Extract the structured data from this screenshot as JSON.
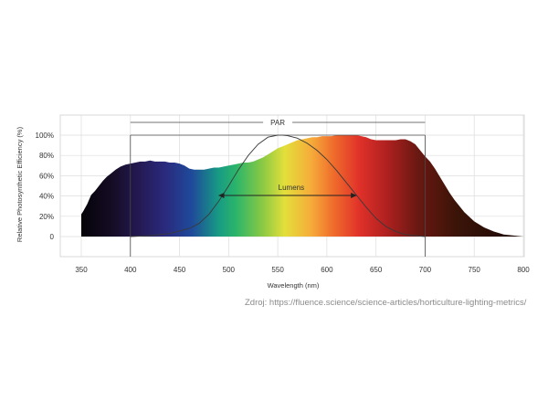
{
  "chart_data": {
    "type": "area",
    "xlabel": "Wavelength (nm)",
    "ylabel": "Relative Photosynthetic Efficiency (%)",
    "xlim": [
      350,
      800
    ],
    "ylim": [
      0,
      100
    ],
    "x_ticks": [
      "350",
      "400",
      "450",
      "500",
      "550",
      "600",
      "650",
      "700",
      "750",
      "800"
    ],
    "y_ticks": [
      "0",
      "20%",
      "40%",
      "60%",
      "80%",
      "100%"
    ],
    "grid": true,
    "series": [
      {
        "x": [
          350,
          352,
          356,
          360,
          364,
          368,
          372,
          376,
          380,
          385,
          390,
          395,
          400,
          405,
          410,
          415,
          420,
          425,
          430,
          435,
          440,
          445,
          450,
          455,
          460,
          465,
          470,
          475,
          480,
          485,
          490,
          495,
          500,
          505,
          510,
          515,
          520,
          525,
          530,
          535,
          540,
          545,
          550,
          555,
          560,
          565,
          570,
          575,
          580,
          585,
          590,
          595,
          600,
          605,
          610,
          615,
          620,
          625,
          630,
          635,
          640,
          645,
          650,
          655,
          660,
          665,
          670,
          675,
          680,
          685,
          690,
          695,
          700,
          705,
          710,
          715,
          720,
          725,
          730,
          740,
          750,
          760,
          770,
          780,
          790,
          800
        ],
        "values": [
          22,
          25,
          32,
          41,
          45,
          50,
          55,
          59,
          62,
          66,
          69,
          71,
          72,
          73,
          74,
          74,
          75,
          74,
          74,
          74,
          73,
          73,
          72,
          70,
          67,
          66,
          66,
          66,
          67,
          68,
          68,
          69,
          70,
          71,
          72,
          73,
          73,
          74,
          76,
          78,
          81,
          84,
          87,
          89,
          91,
          93,
          95,
          96,
          97,
          98,
          98,
          99,
          99,
          99,
          100,
          100,
          100,
          100,
          100,
          99,
          98,
          96,
          95,
          95,
          95,
          95,
          95,
          96,
          96,
          94,
          91,
          85,
          79,
          74,
          67,
          59,
          51,
          43,
          36,
          24,
          15,
          9,
          5,
          2,
          1,
          0
        ]
      },
      {
        "x": [
          400,
          420,
          440,
          460,
          470,
          480,
          490,
          500,
          510,
          520,
          530,
          540,
          550,
          555,
          560,
          570,
          580,
          590,
          600,
          610,
          620,
          630,
          640,
          650,
          660,
          670,
          680,
          690,
          700
        ],
        "values": [
          0,
          1,
          3,
          8,
          13,
          22,
          35,
          50,
          66,
          80,
          91,
          98,
          100,
          100,
          99.5,
          97,
          92,
          85,
          76,
          65,
          53,
          41,
          29,
          18,
          10,
          5,
          2,
          1,
          0
        ]
      }
    ],
    "annotations": [
      {
        "text": "PAR",
        "x_range": [
          400,
          700
        ]
      },
      {
        "text": "Lumens",
        "x_range": [
          490,
          630
        ]
      }
    ]
  },
  "source": "Zdroj: https://fluence.science/science-articles/horticulture-lighting-metrics/"
}
